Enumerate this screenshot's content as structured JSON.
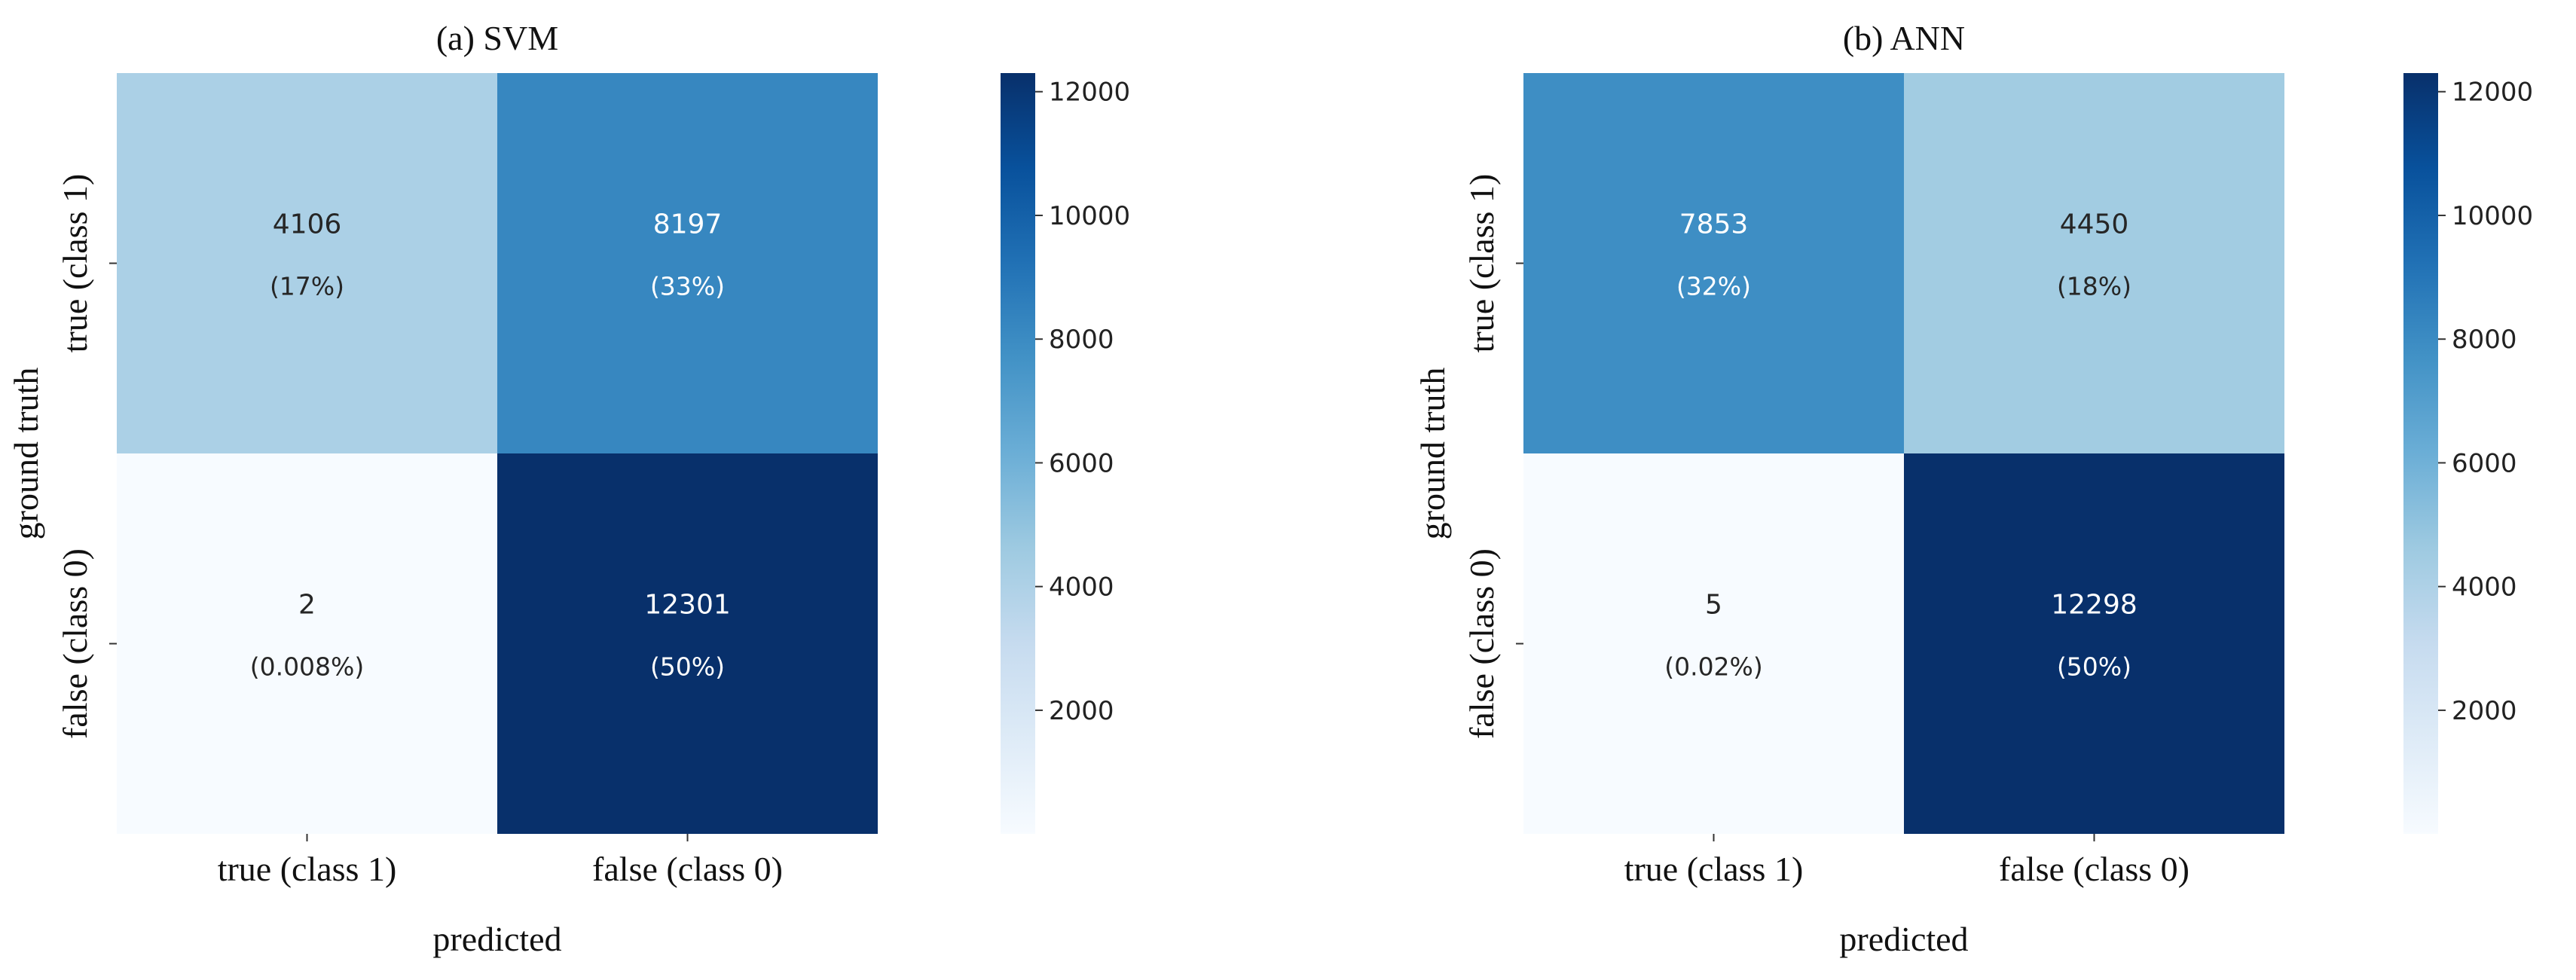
{
  "figure": {
    "panels": [
      {
        "title": "(a) SVM"
      },
      {
        "title": "(b) ANN"
      }
    ]
  },
  "chart_data": [
    {
      "type": "heatmap",
      "title": "(a) SVM",
      "xlabel": "predicted",
      "ylabel": "ground truth",
      "x_categories": [
        "true (class 1)",
        "false (class 0)"
      ],
      "y_categories": [
        "true (class 1)",
        "false (class 0)"
      ],
      "values": [
        [
          4106,
          8197
        ],
        [
          2,
          12301
        ]
      ],
      "percent_labels": [
        [
          "(17%)",
          "(33%)"
        ],
        [
          "(0.008%)",
          "(50%)"
        ]
      ],
      "colormap": "Blues",
      "colorbar": {
        "ticks": [
          2000,
          4000,
          6000,
          8000,
          10000,
          12000
        ],
        "range": [
          2,
          12301
        ]
      }
    },
    {
      "type": "heatmap",
      "title": "(b) ANN",
      "xlabel": "predicted",
      "ylabel": "ground truth",
      "x_categories": [
        "true (class 1)",
        "false (class 0)"
      ],
      "y_categories": [
        "true (class 1)",
        "false (class 0)"
      ],
      "values": [
        [
          7853,
          4450
        ],
        [
          5,
          12298
        ]
      ],
      "percent_labels": [
        [
          "(32%)",
          "(18%)"
        ],
        [
          "(0.02%)",
          "(50%)"
        ]
      ],
      "colormap": "Blues",
      "colorbar": {
        "ticks": [
          2000,
          4000,
          6000,
          8000,
          10000,
          12000
        ],
        "range": [
          2,
          12301
        ]
      }
    }
  ]
}
